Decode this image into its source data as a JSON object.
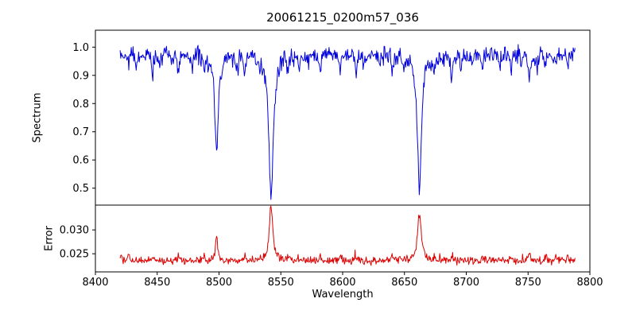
{
  "chart_data": {
    "type": "line",
    "title": "20061215_0200m57_036",
    "xlabel": "Wavelength",
    "xlim": [
      8400,
      8800
    ],
    "xticks": [
      8400,
      8450,
      8500,
      8550,
      8600,
      8650,
      8700,
      8750,
      8800
    ],
    "xtick_labels": [
      "8400",
      "8450",
      "8500",
      "8550",
      "8600",
      "8650",
      "8700",
      "8750",
      "8800"
    ],
    "x_start": 8420,
    "x_end": 8788,
    "x_step": 0.5,
    "noise_seed": 42,
    "grid": false,
    "panels": [
      {
        "name": "spectrum",
        "ylabel": "Spectrum",
        "color": "#0000dd",
        "ylim": [
          0.44,
          1.06
        ],
        "yticks": [
          0.5,
          0.6,
          0.7,
          0.8,
          0.9,
          1.0
        ],
        "ytick_labels": [
          "0.5",
          "0.6",
          "0.7",
          "0.8",
          "0.9",
          "1.0"
        ],
        "continuum": 0.978,
        "noise_amplitude": 0.045,
        "absorption_lines": [
          {
            "center": 8498.0,
            "depth": 0.34,
            "width": 1.8
          },
          {
            "center": 8542.1,
            "depth": 0.51,
            "width": 2.2
          },
          {
            "center": 8662.1,
            "depth": 0.485,
            "width": 2.0
          }
        ],
        "minor_width": 0.9,
        "minor_lines": [
          [
            8427,
            0.03
          ],
          [
            8433,
            0.05
          ],
          [
            8446,
            0.085
          ],
          [
            8452,
            0.04
          ],
          [
            8461,
            0.03
          ],
          [
            8467,
            0.05
          ],
          [
            8478,
            0.035
          ],
          [
            8488,
            0.045
          ],
          [
            8514,
            0.055
          ],
          [
            8521,
            0.05
          ],
          [
            8533,
            0.04
          ],
          [
            8556,
            0.05
          ],
          [
            8565,
            0.04
          ],
          [
            8572,
            0.03
          ],
          [
            8582,
            0.04
          ],
          [
            8598,
            0.05
          ],
          [
            8611,
            0.06
          ],
          [
            8617,
            0.04
          ],
          [
            8630,
            0.035
          ],
          [
            8640,
            0.05
          ],
          [
            8649,
            0.04
          ],
          [
            8674,
            0.05
          ],
          [
            8681,
            0.035
          ],
          [
            8688,
            0.095
          ],
          [
            8696,
            0.05
          ],
          [
            8705,
            0.035
          ],
          [
            8713,
            0.05
          ],
          [
            8727,
            0.04
          ],
          [
            8736,
            0.05
          ],
          [
            8745,
            0.035
          ],
          [
            8751,
            0.11
          ],
          [
            8757,
            0.05
          ],
          [
            8764,
            0.04
          ],
          [
            8772,
            0.05
          ],
          [
            8782,
            0.04
          ]
        ]
      },
      {
        "name": "error",
        "ylabel": "Error",
        "color": "#dd0000",
        "ylim": [
          0.0212,
          0.0352
        ],
        "yticks": [
          0.025,
          0.03
        ],
        "ytick_labels": [
          "0.025",
          "0.030"
        ],
        "baseline": 0.0235,
        "noise_amplitude": 0.0012,
        "peaks": [
          {
            "center": 8498.0,
            "height": 0.005,
            "width": 1.0
          },
          {
            "center": 8542.1,
            "height": 0.011,
            "width": 1.8
          },
          {
            "center": 8662.1,
            "height": 0.01,
            "width": 1.8
          }
        ],
        "minor_width": 0.9,
        "minor_peaks": [
          [
            8421,
            0.0012
          ],
          [
            8427,
            0.0016
          ],
          [
            8446,
            0.0011
          ],
          [
            8467,
            0.0009
          ],
          [
            8488,
            0.0008
          ],
          [
            8521,
            0.0012
          ],
          [
            8556,
            0.0008
          ],
          [
            8582,
            0.0007
          ],
          [
            8598,
            0.0007
          ],
          [
            8611,
            0.0009
          ],
          [
            8640,
            0.0008
          ],
          [
            8674,
            0.0007
          ],
          [
            8688,
            0.001
          ],
          [
            8713,
            0.0008
          ],
          [
            8736,
            0.0009
          ],
          [
            8751,
            0.0016
          ],
          [
            8764,
            0.0009
          ],
          [
            8772,
            0.0012
          ],
          [
            8782,
            0.001
          ]
        ]
      }
    ]
  }
}
